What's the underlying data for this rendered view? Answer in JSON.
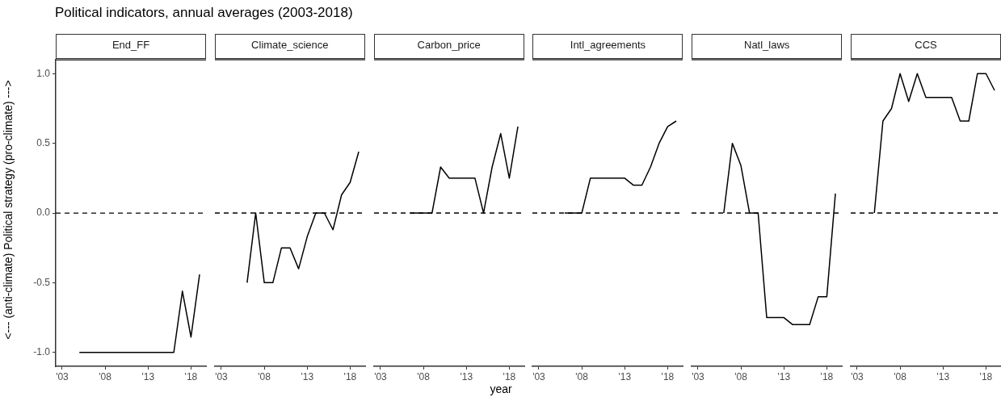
{
  "chart_data": [
    {
      "type": "line",
      "title": "Political indicators, annual averages (2003-2018)",
      "subtitle": "End_FF",
      "ylabel": "<--- (anti-climate)  Political strategy  (pro-climate) --->",
      "xlim": [
        2002.25,
        2019.75
      ],
      "ylim": [
        -1.1,
        1.1
      ],
      "xticks": [
        {
          "value": 2003,
          "label": "'03"
        },
        {
          "value": 2008,
          "label": "'08"
        },
        {
          "value": 2013,
          "label": "'13"
        },
        {
          "value": 2018,
          "label": "'18"
        }
      ],
      "yticks": [
        {
          "value": -1,
          "label": "-1.0"
        },
        {
          "value": -0.5,
          "label": "-0.5"
        },
        {
          "value": 0,
          "label": "0.0"
        },
        {
          "value": 0.5,
          "label": "0.5"
        },
        {
          "value": 1,
          "label": "1.0"
        }
      ],
      "grid": false,
      "legend": false,
      "ref_lines": [
        {
          "axis": "y",
          "value": 0,
          "line_style": "dashed",
          "color": "#000000"
        }
      ],
      "series": [
        {
          "color": "#000000",
          "x": [
            2005,
            2006,
            2007,
            2008,
            2009,
            2010,
            2011,
            2012,
            2013,
            2014,
            2015,
            2016,
            2017,
            2018,
            2019
          ],
          "values": [
            -1,
            -1,
            -1,
            -1,
            -1,
            -1,
            -1,
            -1,
            -1,
            -1,
            -1,
            -1,
            -0.56,
            -0.89,
            -0.44
          ]
        }
      ]
    },
    {
      "type": "line",
      "subtitle": "Climate_science",
      "xlim": [
        2002.25,
        2019.75
      ],
      "ylim": [
        -1.1,
        1.1
      ],
      "xticks": [
        {
          "value": 2003,
          "label": "'03"
        },
        {
          "value": 2008,
          "label": "'08"
        },
        {
          "value": 2013,
          "label": "'13"
        },
        {
          "value": 2018,
          "label": "'18"
        }
      ],
      "tick_labels": "x",
      "grid": false,
      "legend": false,
      "ref_lines": [
        {
          "axis": "y",
          "value": 0,
          "line_style": "dashed",
          "color": "#000000"
        }
      ],
      "series": [
        {
          "color": "#000000",
          "x": [
            2006,
            2007,
            2008,
            2009,
            2010,
            2011,
            2012,
            2013,
            2014,
            2015,
            2016,
            2017,
            2018,
            2019
          ],
          "values": [
            -0.5,
            0,
            -0.5,
            -0.5,
            -0.25,
            -0.25,
            -0.4,
            -0.17,
            0,
            0,
            -0.12,
            0.13,
            0.22,
            0.44
          ]
        }
      ]
    },
    {
      "type": "line",
      "subtitle": "Carbon_price",
      "xlabel": "year",
      "xlim": [
        2002.25,
        2019.75
      ],
      "ylim": [
        -1.1,
        1.1
      ],
      "xticks": [
        {
          "value": 2003,
          "label": "'03"
        },
        {
          "value": 2008,
          "label": "'08"
        },
        {
          "value": 2013,
          "label": "'13"
        },
        {
          "value": 2018,
          "label": "'18"
        }
      ],
      "tick_labels": "x",
      "grid": false,
      "legend": false,
      "ref_lines": [
        {
          "axis": "y",
          "value": 0,
          "line_style": "dashed",
          "color": "#000000"
        }
      ],
      "series": [
        {
          "color": "#000000",
          "x": [
            2006.5,
            2009,
            2010,
            2011,
            2012,
            2013,
            2014,
            2015,
            2016,
            2017,
            2018,
            2019
          ],
          "values": [
            0,
            0,
            0.33,
            0.25,
            0.25,
            0.25,
            0.25,
            0,
            0.33,
            0.57,
            0.25,
            0.62
          ]
        }
      ]
    },
    {
      "type": "line",
      "subtitle": "Intl_agreements",
      "xlim": [
        2002.25,
        2019.75
      ],
      "ylim": [
        -1.1,
        1.1
      ],
      "xticks": [
        {
          "value": 2003,
          "label": "'03"
        },
        {
          "value": 2008,
          "label": "'08"
        },
        {
          "value": 2013,
          "label": "'13"
        },
        {
          "value": 2018,
          "label": "'18"
        }
      ],
      "tick_labels": "x",
      "grid": false,
      "legend": false,
      "ref_lines": [
        {
          "axis": "y",
          "value": 0,
          "line_style": "dashed",
          "color": "#000000"
        }
      ],
      "series": [
        {
          "color": "#000000",
          "x": [
            2006,
            2007,
            2008,
            2009,
            2010,
            2011,
            2012,
            2013,
            2014,
            2015,
            2016,
            2017,
            2018,
            2019
          ],
          "values": [
            0,
            0,
            0,
            0.25,
            0.25,
            0.25,
            0.25,
            0.25,
            0.2,
            0.2,
            0.33,
            0.5,
            0.62,
            0.66
          ]
        }
      ]
    },
    {
      "type": "line",
      "subtitle": "Natl_laws",
      "xlim": [
        2002.25,
        2019.75
      ],
      "ylim": [
        -1.1,
        1.1
      ],
      "xticks": [
        {
          "value": 2003,
          "label": "'03"
        },
        {
          "value": 2008,
          "label": "'08"
        },
        {
          "value": 2013,
          "label": "'13"
        },
        {
          "value": 2018,
          "label": "'18"
        }
      ],
      "tick_labels": "x",
      "grid": false,
      "legend": false,
      "ref_lines": [
        {
          "axis": "y",
          "value": 0,
          "line_style": "dashed",
          "color": "#000000"
        }
      ],
      "series": [
        {
          "color": "#000000",
          "x": [
            2006,
            2007,
            2008,
            2009,
            2010,
            2011,
            2012,
            2013,
            2014,
            2015,
            2016,
            2017,
            2018,
            2019
          ],
          "values": [
            0,
            0.5,
            0.34,
            0,
            0,
            -0.75,
            -0.75,
            -0.75,
            -0.8,
            -0.8,
            -0.8,
            -0.6,
            -0.6,
            0.14
          ]
        }
      ]
    },
    {
      "type": "line",
      "subtitle": "CCS",
      "xlim": [
        2002.25,
        2019.75
      ],
      "ylim": [
        -1.1,
        1.1
      ],
      "xticks": [
        {
          "value": 2003,
          "label": "'03"
        },
        {
          "value": 2008,
          "label": "'08"
        },
        {
          "value": 2013,
          "label": "'13"
        },
        {
          "value": 2018,
          "label": "'18"
        }
      ],
      "tick_labels": "x",
      "grid": false,
      "legend": false,
      "ref_lines": [
        {
          "axis": "y",
          "value": 0,
          "line_style": "dashed",
          "color": "#000000"
        }
      ],
      "series": [
        {
          "color": "#000000",
          "x": [
            2005,
            2006,
            2007,
            2008,
            2009,
            2010,
            2011,
            2012,
            2013,
            2014,
            2015,
            2016,
            2017,
            2018,
            2019
          ],
          "values": [
            0,
            0.66,
            0.75,
            1,
            0.8,
            1,
            0.83,
            0.83,
            0.83,
            0.83,
            0.66,
            0.66,
            1,
            1,
            0.88
          ]
        }
      ]
    }
  ]
}
